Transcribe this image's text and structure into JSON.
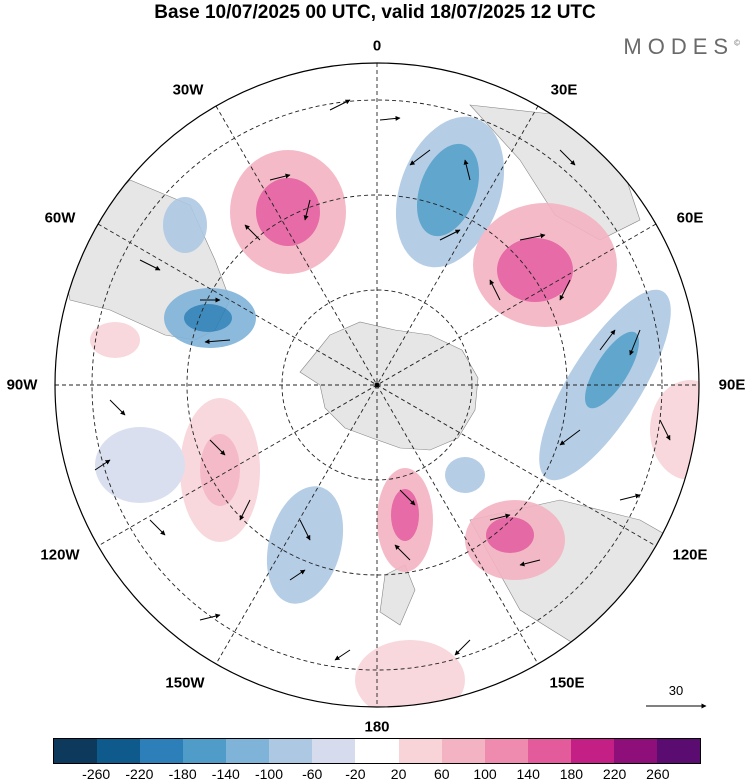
{
  "title": "Base 10/07/2025 00 UTC, valid 18/07/2025 12 UTC",
  "brand": "MODES",
  "brand_mark": "©",
  "longitude_labels": {
    "top": "0",
    "top_left": "30W",
    "top_right": "30E",
    "left_upper": "60W",
    "right_upper": "60E",
    "left": "90W",
    "right": "90E",
    "left_lower": "120W",
    "right_lower": "120E",
    "bottom_left": "150W",
    "bottom_right": "150E",
    "bottom": "180"
  },
  "reference_vector_label": "30",
  "colorbar": {
    "colors": [
      "#0d3a5c",
      "#0f5a8c",
      "#2c7fb8",
      "#4f9cc8",
      "#7fb3d8",
      "#adc8e3",
      "#d6dcee",
      "#ffffff",
      "#f8d4d8",
      "#f4b3c2",
      "#f08bb0",
      "#e45b9c",
      "#c41f85",
      "#8f0f7a",
      "#5a0c70"
    ],
    "tick_labels": [
      "-260",
      "-220",
      "-180",
      "-140",
      "-100",
      "-60",
      "-20",
      "20",
      "60",
      "100",
      "140",
      "180",
      "220",
      "260"
    ]
  }
}
